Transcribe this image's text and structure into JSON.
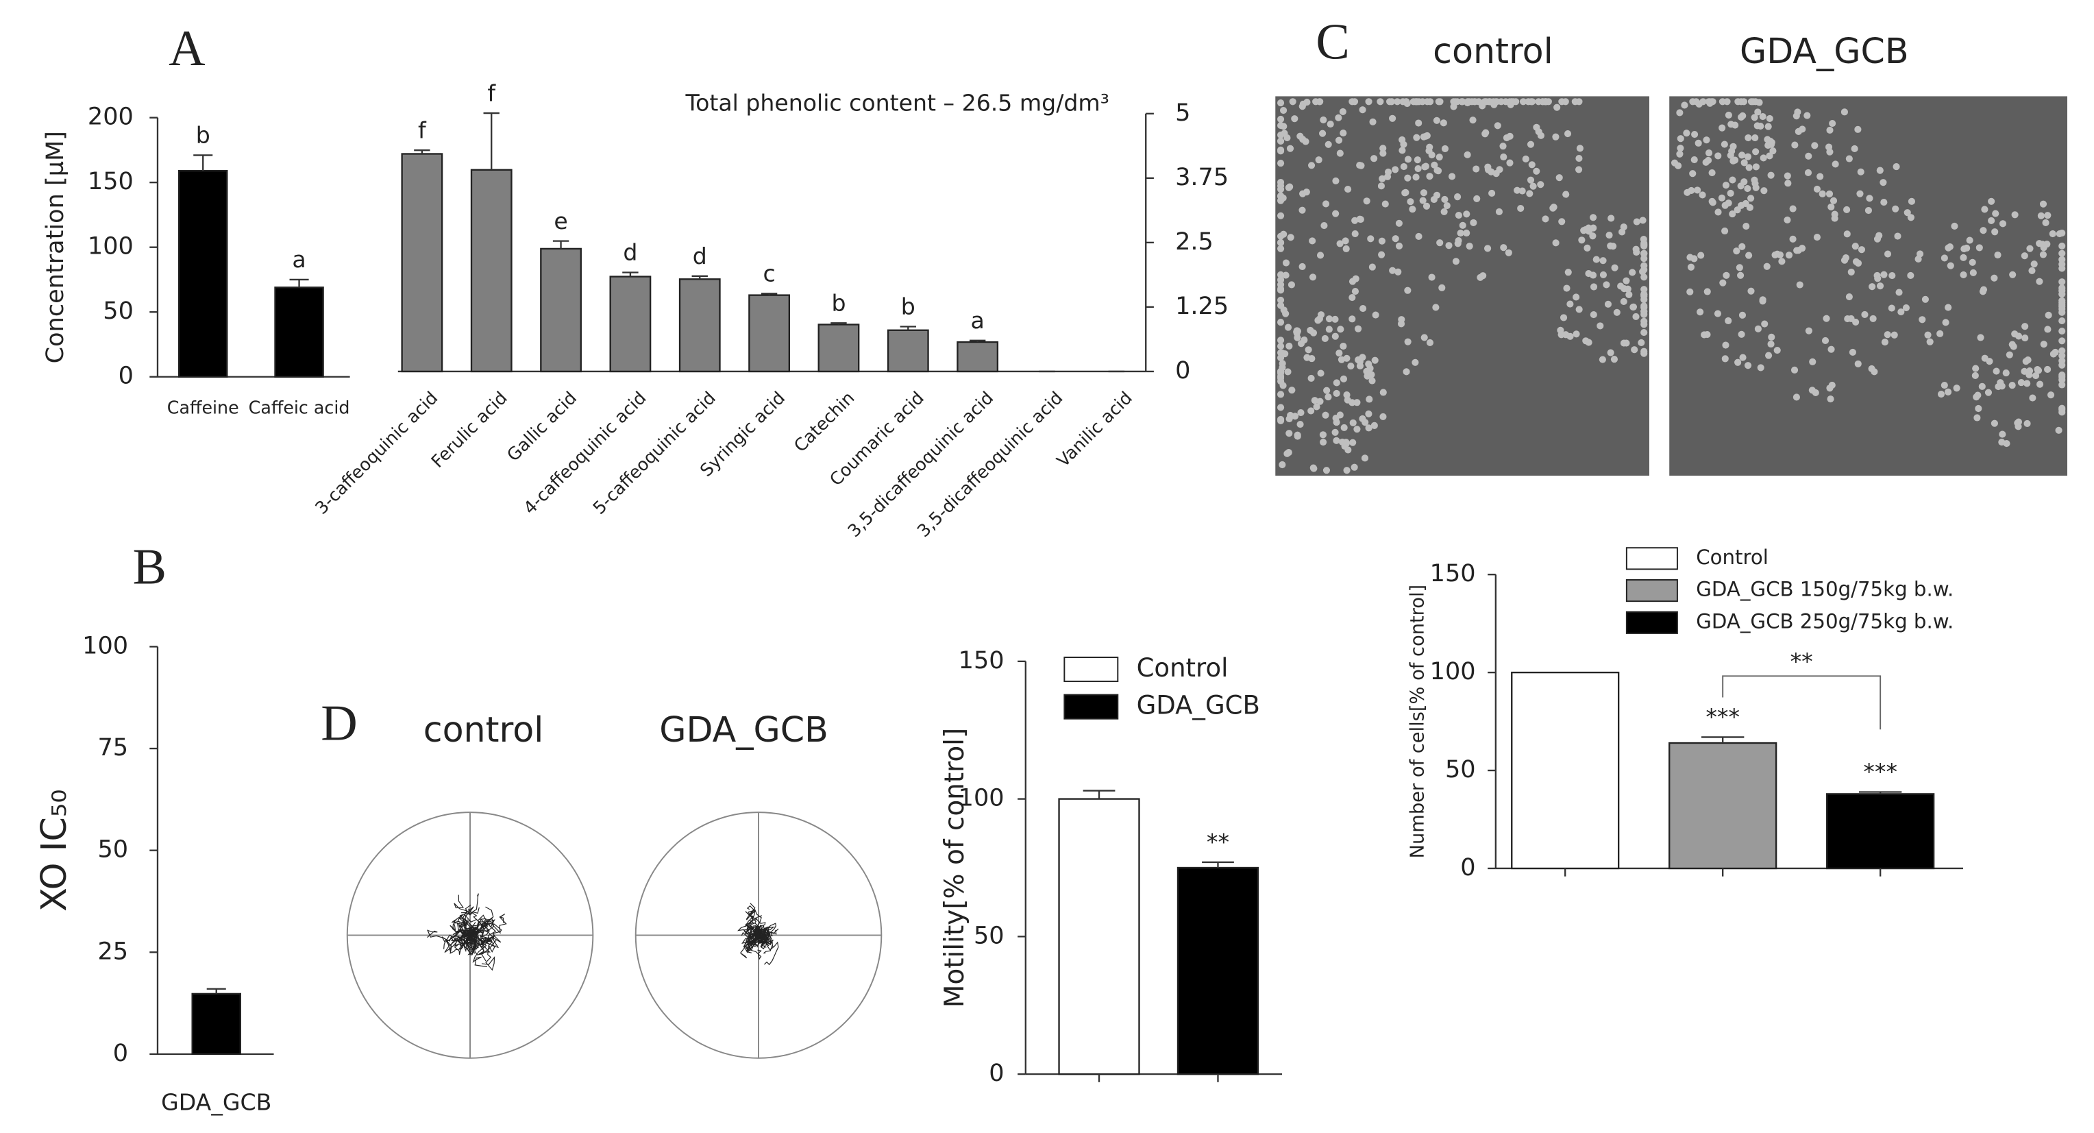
{
  "chart_data": [
    {
      "type": "bar",
      "panel": "A",
      "y_label": "Concentration [µM]",
      "ylim": [
        0,
        200
      ],
      "yticks": [
        0,
        50,
        100,
        150,
        200
      ],
      "categories": [
        "Caffeine",
        "Caffeic acid"
      ],
      "values": [
        159,
        69
      ],
      "errors": [
        12,
        6
      ],
      "annotations": [
        "b",
        "a"
      ],
      "color": "#000000"
    },
    {
      "type": "bar",
      "title": "Total phenolic content – 26.5 mg/dm³",
      "axis": "y2",
      "y2lim": [
        0,
        5
      ],
      "y2ticks": [
        0,
        1.25,
        2.5,
        3.75,
        5
      ],
      "categories": [
        "3-caffeoquinic acid",
        "Ferulic acid",
        "Gallic acid",
        "4-caffeoquinic acid",
        "5-caffeoquinic acid",
        "Syringic acid",
        "Catechin",
        "Coumaric acid",
        "3,5-dicaffeoquinic acid",
        "3,5-dicaffeoquinic acid",
        "Vanilic acid"
      ],
      "values": [
        4.22,
        3.91,
        2.38,
        1.84,
        1.79,
        1.48,
        0.91,
        0.8,
        0.57,
        0,
        0
      ],
      "errors": [
        0.07,
        1.1,
        0.15,
        0.08,
        0.06,
        0.03,
        0.03,
        0.07,
        0.03,
        0,
        0
      ],
      "annotations": [
        "f",
        "f",
        "e",
        "d",
        "d",
        "c",
        "b",
        "b",
        "a",
        null,
        null
      ],
      "color": "#7f7f7f"
    },
    {
      "type": "bar",
      "panel": "B",
      "y_label": "XO IC₅₀",
      "ylim": [
        0,
        100
      ],
      "yticks": [
        0,
        25,
        50,
        75,
        100
      ],
      "categories": [
        "GDA_GCB"
      ],
      "values": [
        14.8
      ],
      "errors": [
        1.2
      ],
      "color": "#000000"
    },
    {
      "type": "bar",
      "y_label": "Motility[% of control]",
      "ylim": [
        0,
        150
      ],
      "yticks": [
        0,
        50,
        100,
        150
      ],
      "legend": "top-right",
      "series": [
        {
          "name": "Control",
          "color": "#ffffff",
          "values": [
            100
          ],
          "errors": [
            3
          ]
        },
        {
          "name": "GDA_GCB",
          "color": "#000000",
          "values": [
            75
          ],
          "errors": [
            2
          ],
          "annotation": "**"
        }
      ]
    },
    {
      "type": "bar",
      "y_label": "Number of cells[% of control]",
      "ylim": [
        0,
        150
      ],
      "yticks": [
        0,
        50,
        100,
        150
      ],
      "legend": "top",
      "series": [
        {
          "name": "Control",
          "color": "#ffffff",
          "values": [
            100
          ]
        },
        {
          "name": "GDA_GCB 150g/75kg b.w.",
          "color": "#9a9a9a",
          "values": [
            64
          ],
          "errors": [
            3
          ],
          "annotation": "***"
        },
        {
          "name": "GDA_GCB 250g/75kg b.w.",
          "color": "#000000",
          "values": [
            38
          ],
          "errors": [
            1
          ],
          "annotation": "***"
        }
      ],
      "comparison": "**"
    }
  ],
  "micrographs": {
    "panel": "C",
    "titles": [
      "control",
      "GDA_GCB"
    ]
  },
  "trajectories": {
    "panel": "D",
    "titles": [
      "control",
      "GDA_GCB"
    ]
  }
}
